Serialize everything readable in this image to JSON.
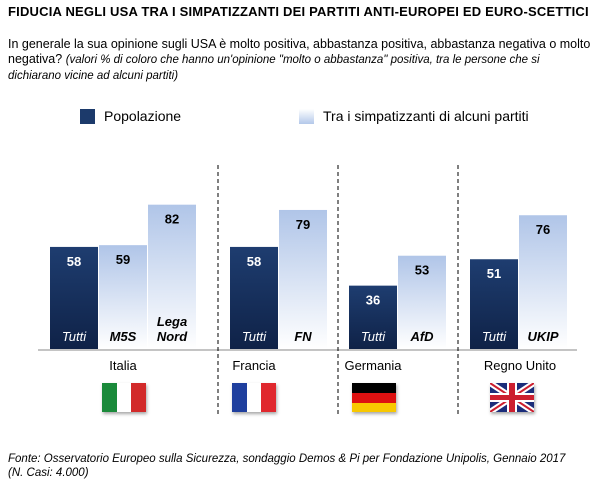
{
  "title": "FIDUCIA NEGLI  USA TRA I SIMPATIZZANTI DEI PARTITI ANTI-EUROPEI ED EURO-SCETTICI",
  "subtitle": "In generale la sua opinione sugli USA è molto positiva, abbastanza positiva, abbastanza negativa o molto negativa?",
  "subtitle_note": "(valori % di coloro che hanno un'opinione \"molto o abbastanza\" positiva, tra le persone che si dichiarano vicine ad alcuni partiti)",
  "legend": [
    {
      "label": "Popolazione",
      "color": "#1c3a6b"
    },
    {
      "label": "Tra i simpatizzanti di alcuni partiti",
      "color": "#b4c8ea"
    }
  ],
  "footer": "Fonte: Osservatorio Europeo sulla Sicurezza, sondaggio Demos & Pi per Fondazione Unipolis, Gennaio 2017 (N. Casi: 4.000)",
  "chart_data": {
    "type": "bar",
    "ylim": [
      0,
      100
    ],
    "groups": [
      {
        "country": "Italia",
        "flag": "italy-flag",
        "bars": [
          {
            "series": "Popolazione",
            "label": "Tutti",
            "value": 58
          },
          {
            "series": "Tra i simpatizzanti di alcuni partiti",
            "label": "M5S",
            "value": 59
          },
          {
            "series": "Tra i simpatizzanti di alcuni partiti",
            "label": "Lega Nord",
            "value": 82
          }
        ]
      },
      {
        "country": "Francia",
        "flag": "france-flag",
        "bars": [
          {
            "series": "Popolazione",
            "label": "Tutti",
            "value": 58
          },
          {
            "series": "Tra i simpatizzanti di alcuni partiti",
            "label": "FN",
            "value": 79
          }
        ]
      },
      {
        "country": "Germania",
        "flag": "germany-flag",
        "bars": [
          {
            "series": "Popolazione",
            "label": "Tutti",
            "value": 36
          },
          {
            "series": "Tra i simpatizzanti di alcuni partiti",
            "label": "AfD",
            "value": 53
          }
        ]
      },
      {
        "country": "Regno Unito",
        "flag": "uk-flag",
        "bars": [
          {
            "series": "Popolazione",
            "label": "Tutti",
            "value": 51
          },
          {
            "series": "Tra i simpatizzanti di alcuni partiti",
            "label": "UKIP",
            "value": 76
          }
        ]
      }
    ]
  }
}
